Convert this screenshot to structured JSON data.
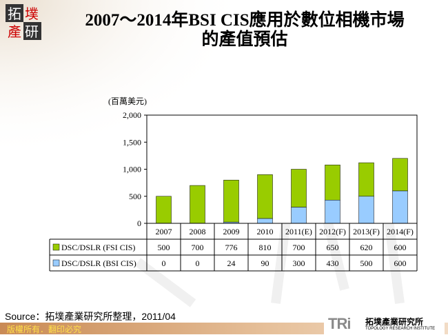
{
  "title": {
    "line1": "2007～2014年BSI CIS應用於數位相機市場",
    "line2": "的產值預估"
  },
  "logo_text": "拓墣產研",
  "chart_data": {
    "type": "bar",
    "stacked": true,
    "title": "2007～2014年BSI CIS應用於數位相機市場的產值預估",
    "ylabel": "(百萬美元)",
    "ylim": [
      0,
      2000
    ],
    "yticks": [
      "0",
      "500",
      "1,000",
      "1,500",
      "2,000"
    ],
    "categories": [
      "2007",
      "2008",
      "2009",
      "2010",
      "2011(E)",
      "2012(F)",
      "2013(F)",
      "2014(F)"
    ],
    "series": [
      {
        "name": "DSC/DSLR (BSI CIS)",
        "values": [
          0,
          0,
          24,
          90,
          300,
          430,
          500,
          600
        ],
        "color": "#99ccff"
      },
      {
        "name": "DSC/DSLR (FSI CIS)",
        "values": [
          500,
          700,
          776,
          810,
          700,
          650,
          620,
          600
        ],
        "color": "#99cc00"
      }
    ],
    "grid": false,
    "legend": "data-table"
  },
  "source": "Source：拓墣產業研究所整理，2011/04",
  "footer": {
    "copyright": "版權所有．翻印必究",
    "brand": "TRi",
    "brand_cn": "拓墣產業研究所",
    "brand_en": "TOPOLOGY RESEARCH INSTITUTE"
  }
}
